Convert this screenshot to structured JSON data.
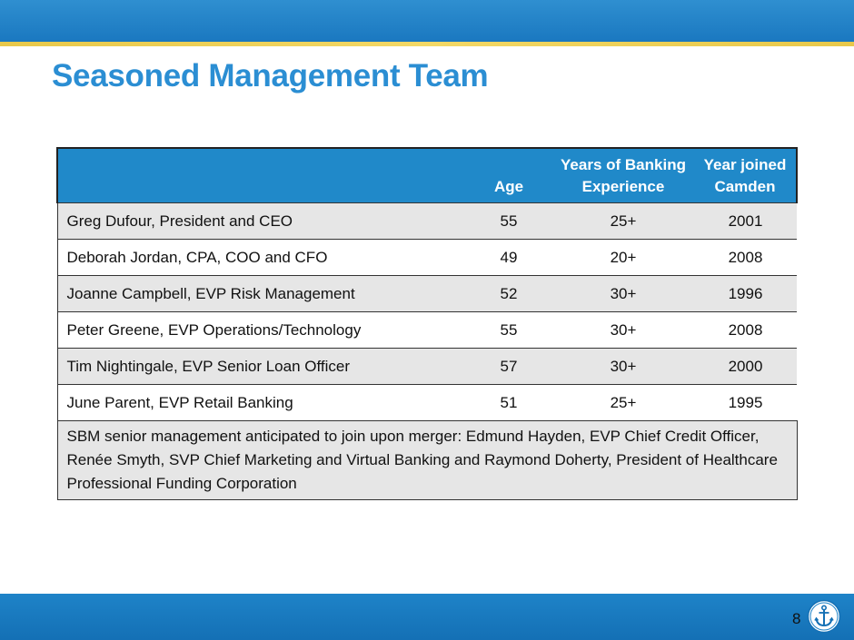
{
  "slide": {
    "title": "Seasoned Management Team",
    "page_number": "8"
  },
  "table": {
    "headers": {
      "name": "",
      "age": "Age",
      "experience": "Years of Banking Experience",
      "joined": "Year joined Camden"
    },
    "rows": [
      {
        "name": "Greg Dufour, President and CEO",
        "age": "55",
        "experience": "25+",
        "joined": "2001"
      },
      {
        "name": "Deborah Jordan, CPA, COO and CFO",
        "age": "49",
        "experience": "20+",
        "joined": "2008"
      },
      {
        "name": "Joanne Campbell, EVP Risk Management",
        "age": "52",
        "experience": "30+",
        "joined": "1996"
      },
      {
        "name": "Peter Greene, EVP Operations/Technology",
        "age": "55",
        "experience": "30+",
        "joined": "2008"
      },
      {
        "name": "Tim Nightingale, EVP Senior Loan Officer",
        "age": "57",
        "experience": "30+",
        "joined": "2000"
      },
      {
        "name": "June Parent, EVP Retail Banking",
        "age": "51",
        "experience": "25+",
        "joined": "1995"
      }
    ],
    "footnote": "SBM senior management anticipated to join upon merger:  Edmund Hayden, EVP Chief Credit Officer, Renée Smyth, SVP Chief Marketing and Virtual Banking and Raymond Doherty, President of Healthcare Professional Funding Corporation"
  },
  "colors": {
    "brand_blue": "#2089c9",
    "title_blue": "#2b8ed3",
    "accent_gold": "#e8c84a"
  },
  "icons": {
    "logo": "anchor-icon"
  }
}
